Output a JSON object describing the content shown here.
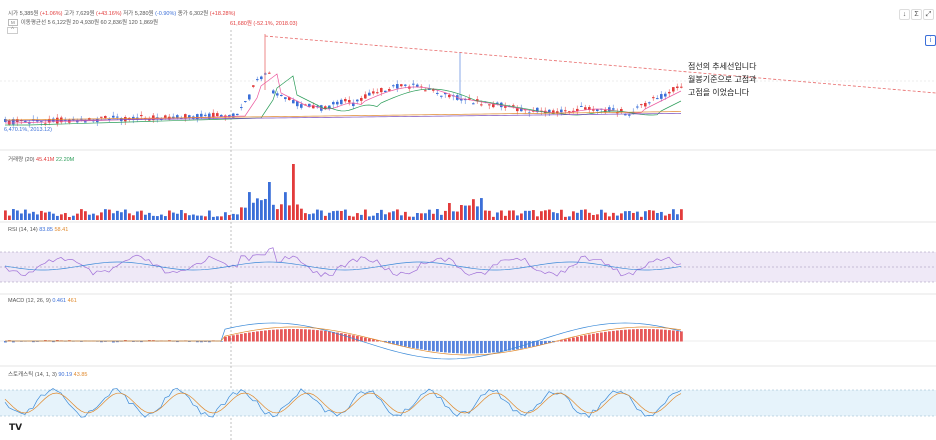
{
  "header": {
    "open_label": "시가",
    "open_value": "5,385원",
    "open_change": "(+1.06%)",
    "high_label": "고가",
    "high_value": "7,629원",
    "high_change": "(+43.16%)",
    "low_label": "저가",
    "low_value": "5,280원",
    "low_change": "(-0.90%)",
    "close_label": "종가",
    "close_value": "6,302원",
    "close_change": "(+18.28%)"
  },
  "moving_average": {
    "tag": "M",
    "label": "이동평균선",
    "text": "5 6,122원 20 4,930원 60 2,836원 120 1,869원"
  },
  "collapse_icon": "^",
  "annotations": {
    "peak": "61,680원 (-52.1%, 2018.03)",
    "low": "6,470.1%, 2013.12)",
    "note_lines": [
      "점선의 추세선입니다",
      "월봉기준으로 고점과",
      "고점을 이었습니다"
    ]
  },
  "panes": {
    "volume": {
      "name": "거래량 (20)",
      "v1": "45.41M",
      "v2": "22.20M"
    },
    "rsi": {
      "name": "RSI (14, 14)",
      "v1": "83.85",
      "v2": "58.41"
    },
    "macd": {
      "name": "MACD (12, 26, 9)",
      "v1": "0.461",
      "v2": "461"
    },
    "stoch": {
      "name": "스토캐스틱 (14, 1, 3)",
      "v1": "90.19",
      "v2": "43.85"
    }
  },
  "toolbar": {
    "down_icon": "↓",
    "sigma_icon": "Σ",
    "expand_icon": "⤢",
    "info_icon": "i"
  },
  "logo": "TV",
  "colors": {
    "up": "#e23b3b",
    "down": "#3b6fd8",
    "trendline": "#e86a6a",
    "rsi_band": "#efe9f7",
    "stoch_band": "#e6f3fb"
  }
}
